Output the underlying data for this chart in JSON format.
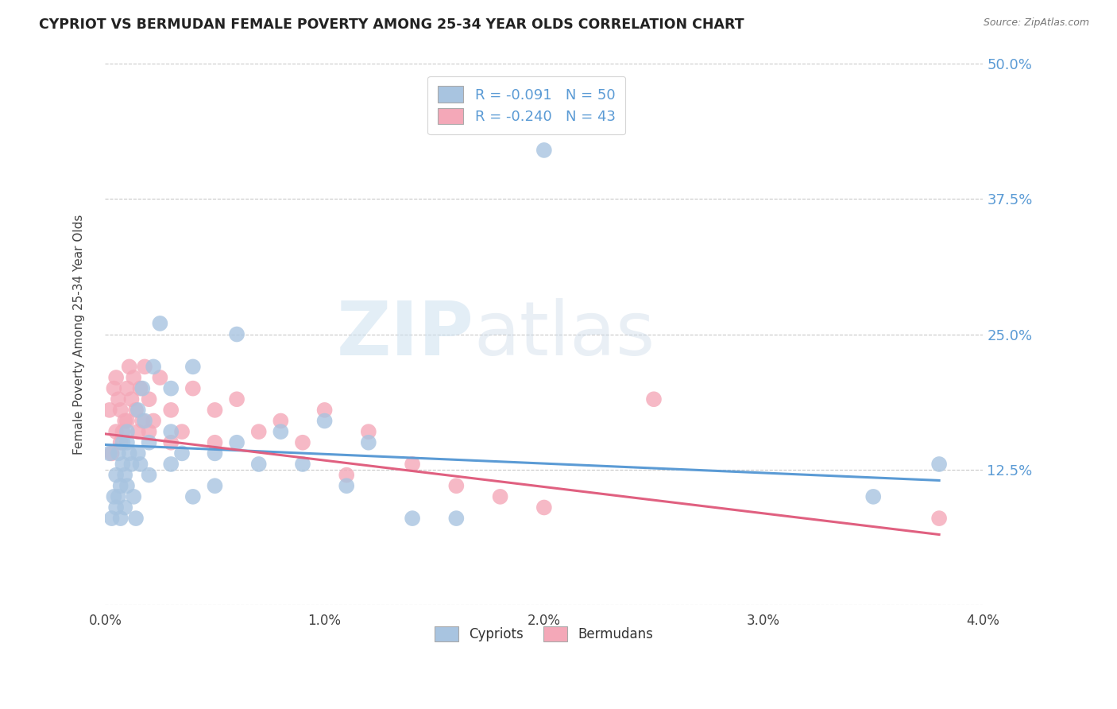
{
  "title": "CYPRIOT VS BERMUDAN FEMALE POVERTY AMONG 25-34 YEAR OLDS CORRELATION CHART",
  "source": "Source: ZipAtlas.com",
  "ylabel": "Female Poverty Among 25-34 Year Olds",
  "xlim": [
    0.0,
    0.04
  ],
  "ylim": [
    0.0,
    0.5
  ],
  "yticks": [
    0.0,
    0.125,
    0.25,
    0.375,
    0.5
  ],
  "ytick_labels": [
    "",
    "12.5%",
    "25.0%",
    "37.5%",
    "50.0%"
  ],
  "xticks": [
    0.0,
    0.01,
    0.02,
    0.03,
    0.04
  ],
  "xtick_labels": [
    "0.0%",
    "1.0%",
    "2.0%",
    "3.0%",
    "4.0%"
  ],
  "cypriot_R": -0.091,
  "cypriot_N": 50,
  "bermudan_R": -0.24,
  "bermudan_N": 43,
  "cypriot_color": "#a8c4e0",
  "bermudan_color": "#f4a8b8",
  "cypriot_line_color": "#5b9bd5",
  "bermudan_line_color": "#e06080",
  "background_color": "#ffffff",
  "grid_color": "#c8c8c8",
  "watermark_zip": "ZIP",
  "watermark_atlas": "atlas",
  "legend_label_1": "Cypriots",
  "legend_label_2": "Bermudans",
  "cypriot_x": [
    0.0002,
    0.0003,
    0.0004,
    0.0005,
    0.0005,
    0.0006,
    0.0006,
    0.0007,
    0.0007,
    0.0008,
    0.0008,
    0.0009,
    0.0009,
    0.001,
    0.001,
    0.001,
    0.0011,
    0.0012,
    0.0013,
    0.0014,
    0.0015,
    0.0015,
    0.0016,
    0.0017,
    0.0018,
    0.002,
    0.002,
    0.0022,
    0.0025,
    0.003,
    0.003,
    0.003,
    0.0035,
    0.004,
    0.004,
    0.005,
    0.005,
    0.006,
    0.006,
    0.007,
    0.008,
    0.009,
    0.01,
    0.011,
    0.012,
    0.014,
    0.016,
    0.02,
    0.035,
    0.038
  ],
  "cypriot_y": [
    0.14,
    0.08,
    0.1,
    0.12,
    0.09,
    0.14,
    0.1,
    0.11,
    0.08,
    0.15,
    0.13,
    0.12,
    0.09,
    0.16,
    0.15,
    0.11,
    0.14,
    0.13,
    0.1,
    0.08,
    0.18,
    0.14,
    0.13,
    0.2,
    0.17,
    0.15,
    0.12,
    0.22,
    0.26,
    0.2,
    0.16,
    0.13,
    0.14,
    0.22,
    0.1,
    0.14,
    0.11,
    0.25,
    0.15,
    0.13,
    0.16,
    0.13,
    0.17,
    0.11,
    0.15,
    0.08,
    0.08,
    0.42,
    0.1,
    0.13
  ],
  "bermudan_x": [
    0.0002,
    0.0003,
    0.0004,
    0.0005,
    0.0005,
    0.0006,
    0.0007,
    0.0007,
    0.0008,
    0.0009,
    0.001,
    0.001,
    0.0011,
    0.0012,
    0.0013,
    0.0014,
    0.0015,
    0.0016,
    0.0017,
    0.0018,
    0.002,
    0.002,
    0.0022,
    0.0025,
    0.003,
    0.003,
    0.0035,
    0.004,
    0.005,
    0.005,
    0.006,
    0.007,
    0.008,
    0.009,
    0.01,
    0.011,
    0.012,
    0.014,
    0.016,
    0.018,
    0.02,
    0.025,
    0.038
  ],
  "bermudan_y": [
    0.18,
    0.14,
    0.2,
    0.16,
    0.21,
    0.19,
    0.15,
    0.18,
    0.16,
    0.17,
    0.2,
    0.17,
    0.22,
    0.19,
    0.21,
    0.18,
    0.16,
    0.2,
    0.17,
    0.22,
    0.16,
    0.19,
    0.17,
    0.21,
    0.18,
    0.15,
    0.16,
    0.2,
    0.15,
    0.18,
    0.19,
    0.16,
    0.17,
    0.15,
    0.18,
    0.12,
    0.16,
    0.13,
    0.11,
    0.1,
    0.09,
    0.19,
    0.08
  ],
  "cyp_trend_x0": 0.0,
  "cyp_trend_x1": 0.038,
  "cyp_trend_y0": 0.148,
  "cyp_trend_y1": 0.115,
  "ber_trend_x0": 0.0,
  "ber_trend_x1": 0.038,
  "ber_trend_y0": 0.158,
  "ber_trend_y1": 0.065
}
